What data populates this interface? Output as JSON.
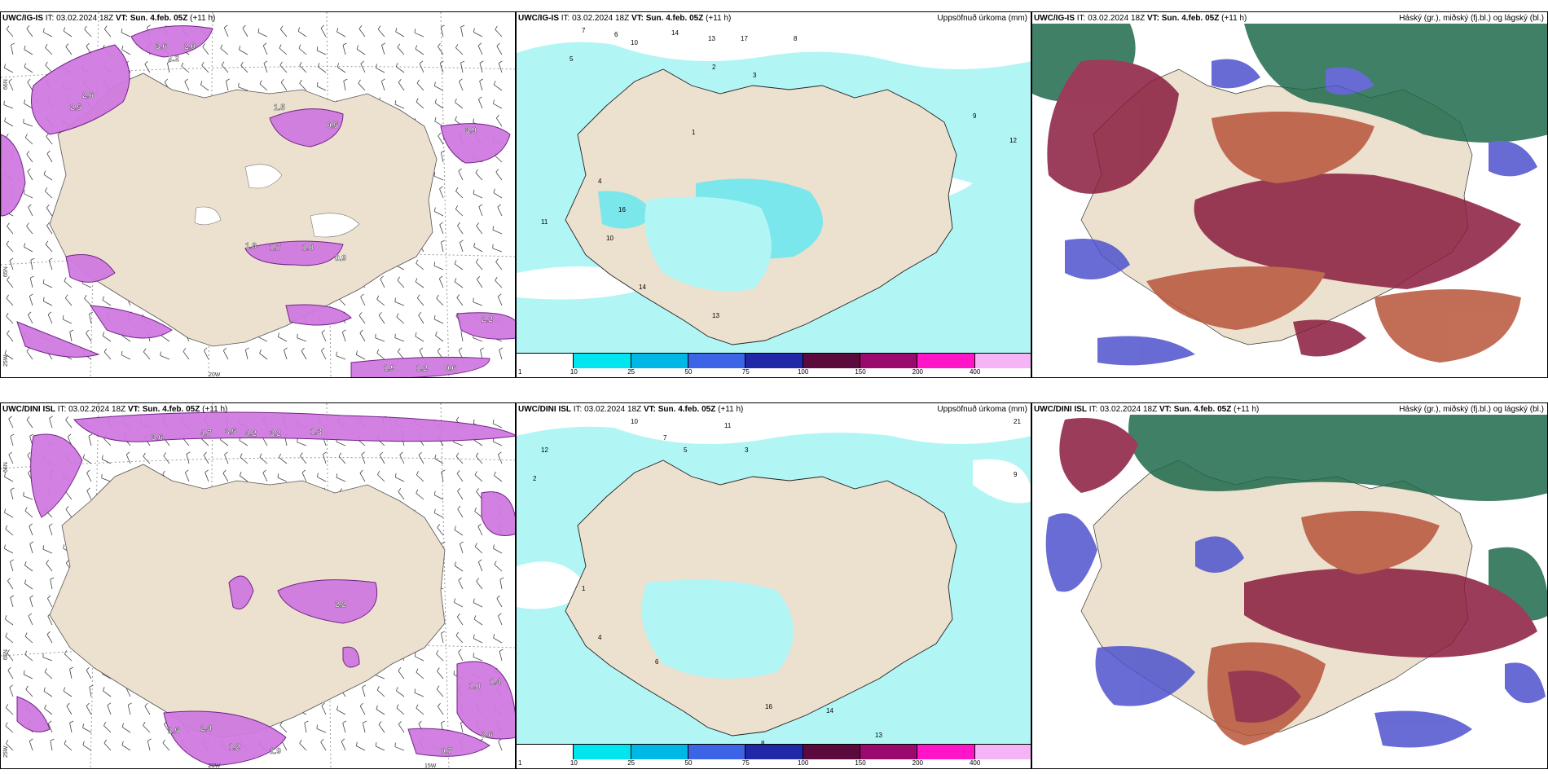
{
  "panels": {
    "top_left": {
      "model": "UWC/IG-IS",
      "it_label": "IT:",
      "it_value": "03.02.2024 18Z",
      "vt_label": "VT:",
      "vt_value": "Sun. 4.feb. 05Z",
      "lead": "(+11 h)"
    },
    "top_mid": {
      "model": "UWC/IG-IS",
      "it_label": "IT:",
      "it_value": "03.02.2024 18Z",
      "vt_label": "VT:",
      "vt_value": "Sun. 4.feb. 05Z",
      "lead": "(+11 h)",
      "right_title": "Uppsöfnuð úrkoma (mm)"
    },
    "top_right": {
      "model": "UWC/IG-IS",
      "it_label": "IT:",
      "it_value": "03.02.2024 18Z",
      "vt_label": "VT:",
      "vt_value": "Sun. 4.feb. 05Z",
      "lead": "(+11 h)",
      "right_title": "Háský (gr.), miðský (fj.bl.) og lágský (bl.)"
    },
    "bottom_left": {
      "model": "UWC/DINI ISL",
      "it_label": "IT:",
      "it_value": "03.02.2024 18Z",
      "vt_label": "VT:",
      "vt_value": "Sun. 4.feb. 05Z",
      "lead": "(+11 h)"
    },
    "bottom_mid": {
      "model": "UWC/DINI ISL",
      "it_label": "IT:",
      "it_value": "03.02.2024 18Z",
      "vt_label": "VT:",
      "vt_value": "Sun. 4.feb. 05Z",
      "lead": "(+11 h)",
      "right_title": "Uppsöfnuð úrkoma (mm)"
    },
    "bottom_right": {
      "model": "UWC/DINI ISL",
      "it_label": "IT:",
      "it_value": "03.02.2024 18Z",
      "vt_label": "VT:",
      "vt_value": "Sun. 4.feb. 05Z",
      "lead": "(+11 h)",
      "right_title": "Háský (gr.), miðský (fj.bl.) og lágský (bl.)"
    }
  },
  "axes": {
    "lat66": "66N",
    "lat65": "65N",
    "lon25": "25W",
    "lon20": "20W",
    "lon15": "15W"
  },
  "colorbar": {
    "ticks": [
      "1",
      "10",
      "25",
      "50",
      "75",
      "100",
      "150",
      "200",
      "400"
    ],
    "colors": [
      "#ffffff",
      "#00e5ee",
      "#00b8e6",
      "#3c64e6",
      "#2028a8",
      "#5a0a3c",
      "#9a0a6e",
      "#ff14c8",
      "#f5b4f5"
    ]
  },
  "colors": {
    "land": "#ece0cf",
    "precip_light": "#b2f5f5",
    "precip_mid": "#6ee8ee",
    "snow_band": "#c85ad8",
    "snow_band_dark": "#5a1a6e",
    "cloud_high": "#1f6a4c",
    "cloud_mid": "#8a1c3e",
    "cloud_mid2": "#b8553a",
    "cloud_low": "#4d52cc"
  },
  "labels": {
    "top_left_bands": [
      "3.6",
      "2.0",
      "2.2",
      "2.6",
      "2.5",
      "1.5",
      "0.5",
      "3.9",
      "1.8",
      "1.7",
      "1.0",
      "0.9",
      "2.2",
      "1.9",
      "1.2",
      "0.6"
    ],
    "bottom_left_bands": [
      "3.6",
      "4.7",
      "3.5",
      "4.2",
      "3.2",
      "1.3",
      "1.5",
      "2.4",
      "1.2",
      "1.9",
      "2.2",
      "1.0",
      "1.4",
      "2.6",
      "0.7"
    ],
    "top_mid_numbers": [
      "7",
      "6",
      "10",
      "14",
      "13",
      "17",
      "8",
      "5",
      "2",
      "3",
      "1",
      "4",
      "9",
      "12",
      "11",
      "10",
      "13",
      "16",
      "14"
    ],
    "bottom_mid_numbers": [
      "10",
      "7",
      "11",
      "5",
      "3",
      "9",
      "8",
      "12",
      "2",
      "1",
      "4",
      "6",
      "13",
      "14",
      "16",
      "21"
    ]
  }
}
